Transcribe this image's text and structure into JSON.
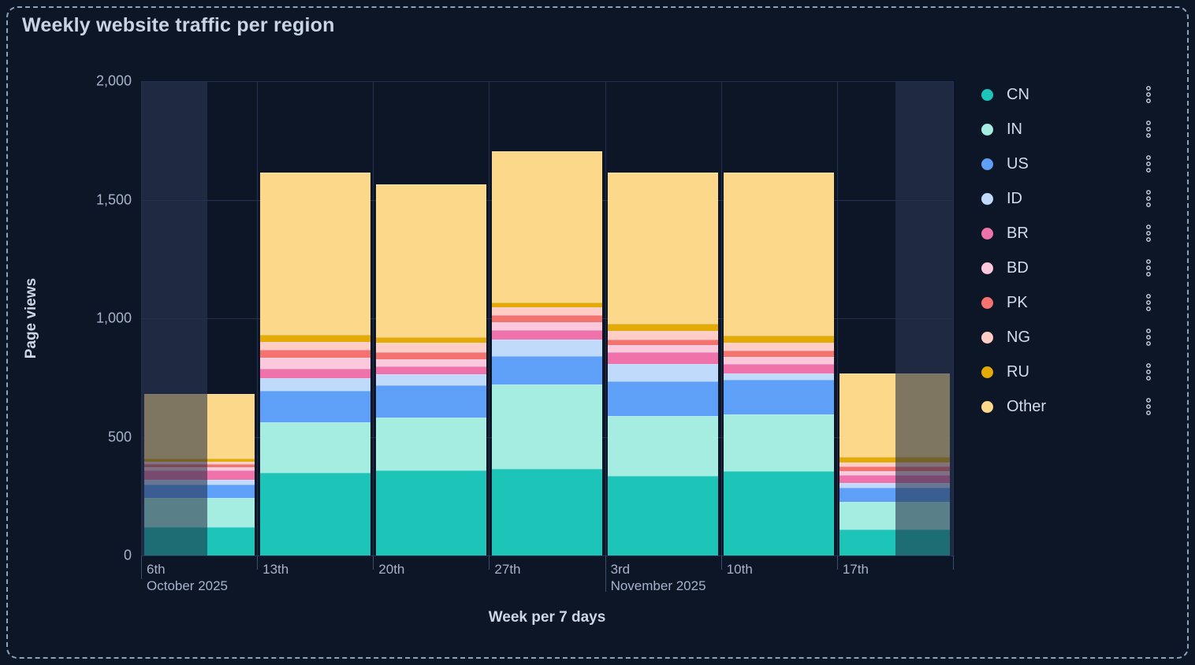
{
  "title": "Weekly website traffic per region",
  "chart_data": {
    "type": "bar",
    "stacked": true,
    "title": "Weekly website traffic per region",
    "xlabel": "Week per 7 days",
    "ylabel": "Page views",
    "ylim": [
      0,
      2000
    ],
    "yticks": [
      0,
      500,
      1000,
      1500,
      2000
    ],
    "ytick_labels": [
      "0",
      "500",
      "1,000",
      "1,500",
      "2,000"
    ],
    "categories": [
      "6th",
      "13th",
      "20th",
      "27th",
      "3rd",
      "10th",
      "17th"
    ],
    "month_labels": [
      {
        "index": 0,
        "label": "October 2025"
      },
      {
        "index": 4,
        "label": "November 2025"
      }
    ],
    "legend_position": "right",
    "grid": true,
    "series": [
      {
        "name": "CN",
        "color": "#1cc5b7",
        "values": [
          120,
          349,
          360,
          367,
          337,
          354,
          110
        ]
      },
      {
        "name": "IN",
        "color": "#a5ece1",
        "values": [
          123,
          212,
          221,
          355,
          252,
          241,
          115
        ]
      },
      {
        "name": "US",
        "color": "#5e9ff7",
        "values": [
          56,
          135,
          137,
          117,
          146,
          146,
          62
        ]
      },
      {
        "name": "ID",
        "color": "#c0dafb",
        "values": [
          19,
          50,
          45,
          70,
          73,
          28,
          20
        ]
      },
      {
        "name": "BR",
        "color": "#ef72ab",
        "values": [
          42,
          42,
          34,
          41,
          50,
          39,
          33
        ]
      },
      {
        "name": "BD",
        "color": "#fbc8dc",
        "values": [
          13,
          45,
          30,
          32,
          29,
          30,
          14
        ]
      },
      {
        "name": "PK",
        "color": "#f5736f",
        "values": [
          13,
          33,
          31,
          30,
          22,
          26,
          20
        ]
      },
      {
        "name": "NG",
        "color": "#ffcdc5",
        "values": [
          11,
          34,
          40,
          34,
          37,
          34,
          19
        ]
      },
      {
        "name": "RU",
        "color": "#e4aa05",
        "values": [
          11,
          31,
          22,
          20,
          30,
          30,
          23
        ]
      },
      {
        "name": "Other",
        "color": "#fbd88a",
        "values": [
          274,
          684,
          645,
          638,
          639,
          687,
          351
        ]
      }
    ],
    "totals": [
      682,
      1615,
      1565,
      1704,
      1615,
      1615,
      767
    ],
    "partial_week_overlay": {
      "note": "first and last bars are partially dimmed (out-of-range portion of week)",
      "first_bar_dim_side": "left",
      "last_bar_dim_side": "right"
    }
  },
  "legend": {
    "menu_icon": "kebab-dots-icon",
    "items": [
      {
        "label": "CN"
      },
      {
        "label": "IN"
      },
      {
        "label": "US"
      },
      {
        "label": "ID"
      },
      {
        "label": "BR"
      },
      {
        "label": "BD"
      },
      {
        "label": "PK"
      },
      {
        "label": "NG"
      },
      {
        "label": "RU"
      },
      {
        "label": "Other"
      }
    ]
  },
  "colors": {
    "background": "#0d1626",
    "frame_border": "#8ba1c0",
    "gridline": "#243050",
    "out_of_range_band": "#1f2942",
    "title_text": "#c9d4e3",
    "tick_text": "#a7b3cc",
    "axis_title_text": "#ccd6e4",
    "legend_text": "#d2dcea"
  }
}
